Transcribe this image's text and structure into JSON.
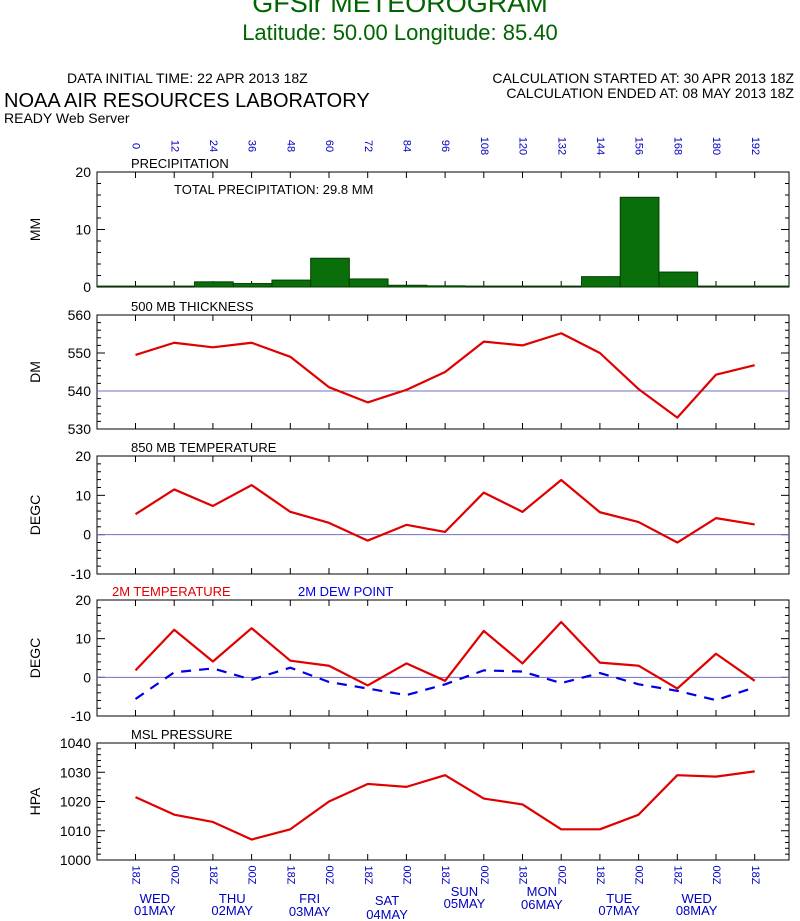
{
  "header": {
    "title": "GFSlr METEOROGRAM",
    "subtitle": "Latitude: 50.00 Longitude:  85.40",
    "data_initial_time": "DATA INITIAL TIME: 22 APR 2013 18Z",
    "calc_started": "CALCULATION STARTED AT: 30 APR 2013 18Z",
    "calc_ended": "CALCULATION ENDED AT: 08 MAY 2013 18Z",
    "lab": "NOAA AIR RESOURCES LABORATORY",
    "server": "READY Web Server",
    "title_color": "#006400"
  },
  "chart_data": {
    "type": "meteogram",
    "forecast_hours": [
      "0",
      "12",
      "24",
      "36",
      "48",
      "60",
      "72",
      "84",
      "96",
      "108",
      "120",
      "132",
      "144",
      "156",
      "168",
      "180",
      "192"
    ],
    "time_labels": [
      "18Z",
      "00Z",
      "18Z",
      "00Z",
      "18Z",
      "00Z",
      "18Z",
      "00Z",
      "18Z",
      "00Z",
      "18Z",
      "00Z",
      "18Z",
      "00Z",
      "18Z",
      "00Z",
      "18Z"
    ],
    "days": [
      {
        "dow": "WED",
        "date": "01MAY",
        "x": 4
      },
      {
        "dow": "THU",
        "date": "02MAY",
        "x": 6
      },
      {
        "dow": "FRI",
        "date": "03MAY",
        "x": 8
      },
      {
        "dow": "SAT",
        "date": "04MAY",
        "x": 10
      },
      {
        "dow": "SUN",
        "date": "05MAY",
        "x": 12
      },
      {
        "dow": "MON",
        "date": "06MAY",
        "x": 14
      },
      {
        "dow": "TUE",
        "date": "07MAY",
        "x": 16
      },
      {
        "dow": "WED",
        "date": "08MAY",
        "x": 18
      }
    ],
    "colors": {
      "axis": "#000000",
      "line": "#e00000",
      "dew": "#0000e0",
      "bar": "#0a6e0a",
      "zero": "#7070c0",
      "hour_label": "#0000c0"
    },
    "panels": [
      {
        "id": "precip",
        "type": "bar",
        "title": "PRECIPITATION",
        "ylabel": "MM",
        "ylim": [
          0,
          20
        ],
        "yticks": [
          0,
          10,
          20
        ],
        "annotation": "TOTAL PRECIPITATION:  29.8 MM",
        "bars": [
          {
            "x0": 2,
            "x1": 3,
            "value": 0.9
          },
          {
            "x0": 3,
            "x1": 4,
            "value": 0.6
          },
          {
            "x0": 4,
            "x1": 5,
            "value": 1.2
          },
          {
            "x0": 5,
            "x1": 6,
            "value": 5.0
          },
          {
            "x0": 6,
            "x1": 7,
            "value": 1.4
          },
          {
            "x0": 7,
            "x1": 8,
            "value": 0.3
          },
          {
            "x0": 8,
            "x1": 9,
            "value": 0.2
          },
          {
            "x0": 12,
            "x1": 13,
            "value": 1.8
          },
          {
            "x0": 13,
            "x1": 14,
            "value": 15.6
          },
          {
            "x0": 14,
            "x1": 15,
            "value": 2.6
          }
        ]
      },
      {
        "id": "thickness",
        "type": "line",
        "title": "500 MB  THICKNESS",
        "ylabel": "DM",
        "ylim": [
          530,
          560
        ],
        "yticks": [
          530,
          540,
          550,
          560
        ],
        "refline": 540,
        "series": [
          {
            "name": "500 MB THICKNESS",
            "color": "#e00000",
            "dashed": false,
            "values": [
              549.5,
              552.7,
              551.5,
              552.7,
              549,
              541,
              537,
              540.3,
              545,
              553,
              552,
              555.2,
              550,
              540.5,
              533,
              544.3,
              546.8
            ]
          }
        ]
      },
      {
        "id": "t850",
        "type": "line",
        "title": "850 MB  TEMPERATURE",
        "ylabel": "DEGC",
        "ylim": [
          -10,
          20
        ],
        "yticks": [
          -10,
          0,
          10,
          20
        ],
        "refline": 0,
        "series": [
          {
            "name": "850 MB TEMPERATURE",
            "color": "#e00000",
            "dashed": false,
            "values": [
              5.2,
              11.5,
              7.3,
              12.6,
              5.8,
              3,
              -1.5,
              2.5,
              0.7,
              10.7,
              5.8,
              13.9,
              5.7,
              3.2,
              -2,
              4.2,
              2.6
            ]
          }
        ]
      },
      {
        "id": "t2m",
        "type": "line",
        "title": "",
        "legend": [
          {
            "text": "2M TEMPERATURE",
            "color": "#e00000"
          },
          {
            "text": "2M   DEW POINT",
            "color": "#0000e0"
          }
        ],
        "ylabel": "DEGC",
        "ylim": [
          -10,
          20
        ],
        "yticks": [
          -10,
          0,
          10,
          20
        ],
        "refline": 0,
        "series": [
          {
            "name": "2M TEMPERATURE",
            "color": "#e00000",
            "dashed": false,
            "values": [
              1.8,
              12.3,
              4.1,
              12.7,
              4.3,
              3,
              -2.1,
              3.6,
              -0.9,
              12,
              3.6,
              14.3,
              3.8,
              3,
              -2.9,
              6.1,
              -0.9
            ]
          },
          {
            "name": "2M DEW POINT",
            "color": "#0000e0",
            "dashed": true,
            "values": [
              -5.6,
              1.3,
              2.3,
              -0.6,
              2.5,
              -1.2,
              -2.9,
              -4.6,
              -1.8,
              1.8,
              1.5,
              -1.5,
              1.1,
              -1.8,
              -3.5,
              -5.9,
              -2.6
            ]
          }
        ]
      },
      {
        "id": "mslp",
        "type": "line",
        "title": "MSL PRESSURE",
        "ylabel": "HPA",
        "ylim": [
          1000,
          1040
        ],
        "yticks": [
          1000,
          1010,
          1020,
          1030,
          1040
        ],
        "series": [
          {
            "name": "MSL PRESSURE",
            "color": "#e00000",
            "dashed": false,
            "values": [
              1021.5,
              1015.5,
              1013,
              1007,
              1010.5,
              1020,
              1026,
              1025,
              1029,
              1021,
              1019,
              1010.5,
              1010.5,
              1015.5,
              1029,
              1028.5,
              1030.3
            ]
          }
        ]
      }
    ]
  }
}
